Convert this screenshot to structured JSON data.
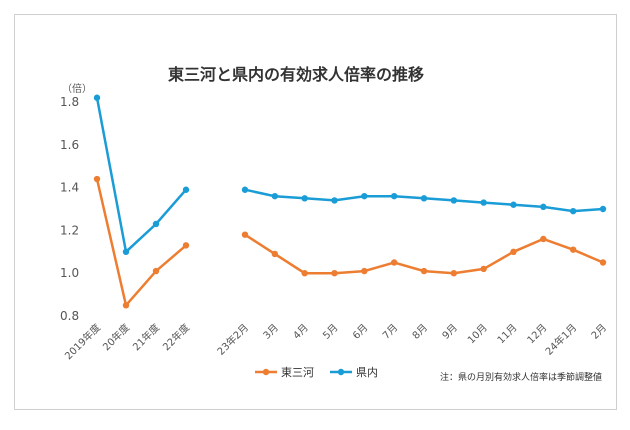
{
  "chart_data": {
    "type": "line",
    "title": "東三河と県内の有効求人倍率の推移",
    "ylabel": "（倍）",
    "ylim": [
      0.8,
      1.8
    ],
    "yticks": [
      "0.8",
      "1.0",
      "1.2",
      "1.4",
      "1.6",
      "1.8"
    ],
    "annual_categories": [
      "2019年度",
      "20年度",
      "21年度",
      "22年度"
    ],
    "monthly_categories": [
      "23年2月",
      "3月",
      "4月",
      "5月",
      "6月",
      "7月",
      "8月",
      "9月",
      "10月",
      "11月",
      "12月",
      "24年1月",
      "2月"
    ],
    "series": [
      {
        "name": "東三河",
        "color": "#ED7D31",
        "annual": [
          1.44,
          0.85,
          1.01,
          1.13
        ],
        "monthly": [
          1.18,
          1.09,
          1.0,
          1.0,
          1.01,
          1.05,
          1.01,
          1.0,
          1.02,
          1.1,
          1.16,
          1.11,
          1.05
        ]
      },
      {
        "name": "県内",
        "color": "#1A9CD6",
        "annual": [
          1.82,
          1.1,
          1.23,
          1.39
        ],
        "monthly": [
          1.39,
          1.36,
          1.35,
          1.34,
          1.36,
          1.36,
          1.35,
          1.34,
          1.33,
          1.32,
          1.31,
          1.29,
          1.3
        ]
      }
    ],
    "legend_position": "bottom",
    "grid": false,
    "note": "注：県の月別有効求人倍率は季節調整値"
  }
}
